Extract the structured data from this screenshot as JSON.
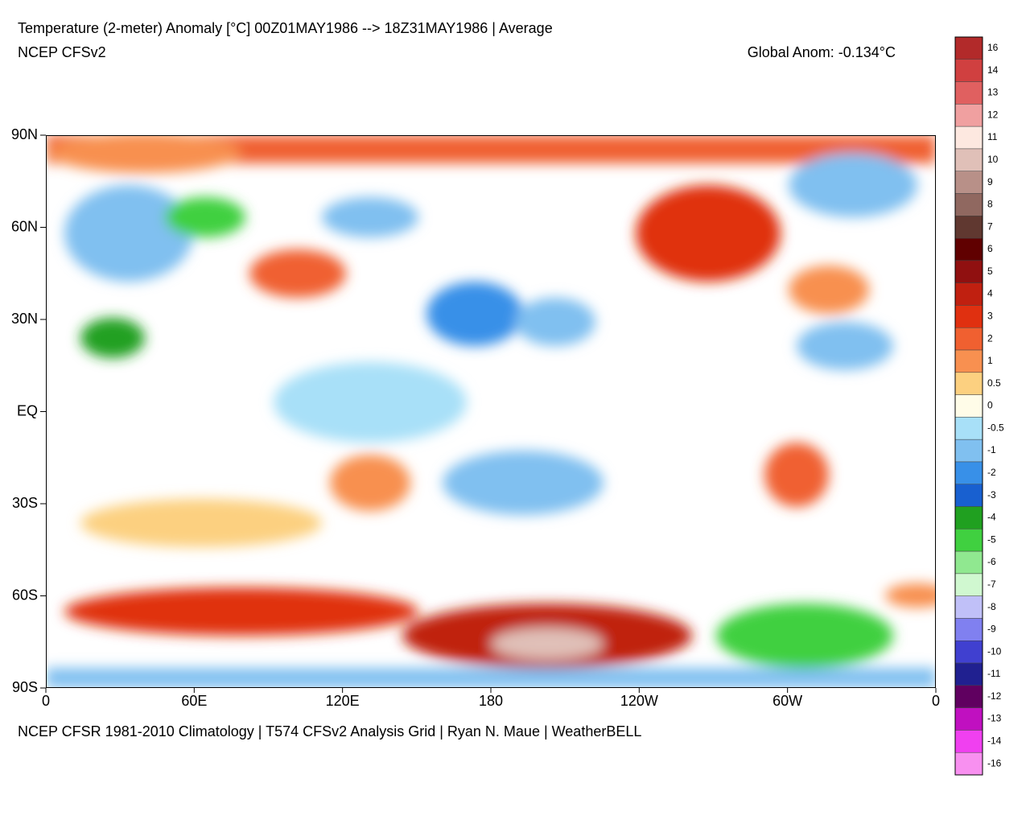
{
  "header": {
    "title": "Temperature (2-meter) Anomaly  [°C] 00Z01MAY1986 --> 18Z31MAY1986 | Average",
    "subtitle": "NCEP CFSv2",
    "global_anomaly": "Global Anom: -0.134°C"
  },
  "map": {
    "lat_labels": [
      "90N",
      "60N",
      "30N",
      "EQ",
      "30S",
      "60S",
      "90S"
    ],
    "lon_labels": [
      "0",
      "60E",
      "120E",
      "180",
      "120W",
      "60W",
      "0"
    ]
  },
  "footer": "NCEP CFSR 1981-2010 Climatology | T574 CFSv2 Analysis Grid | Ryan N. Maue | WeatherBELL",
  "colorbar": {
    "labels": [
      "16",
      "14",
      "13",
      "12",
      "11",
      "10",
      "9",
      "8",
      "7",
      "6",
      "5",
      "4",
      "3",
      "2",
      "1",
      "0.5",
      "0",
      "-0.5",
      "-1",
      "-2",
      "-3",
      "-4",
      "-5",
      "-6",
      "-7",
      "-8",
      "-9",
      "-10",
      "-11",
      "-12",
      "-13",
      "-14",
      "-16"
    ],
    "colors": [
      "#b22a2a",
      "#d04040",
      "#e06060",
      "#f0a0a0",
      "#fde8e0",
      "#e0c0b8",
      "#b89088",
      "#906860",
      "#603830",
      "#600000",
      "#901010",
      "#c02010",
      "#e03010",
      "#f06030",
      "#f89050",
      "#fcd080",
      "#fffce8",
      "#a8e0f8",
      "#80c0f0",
      "#3890e8",
      "#1860d0",
      "#20a020",
      "#40d040",
      "#90e890",
      "#d0f8d0",
      "#c0c0f8",
      "#8080f0",
      "#4040d0",
      "#202090",
      "#600060",
      "#c010c0",
      "#f040f0",
      "#f890f0"
    ]
  }
}
